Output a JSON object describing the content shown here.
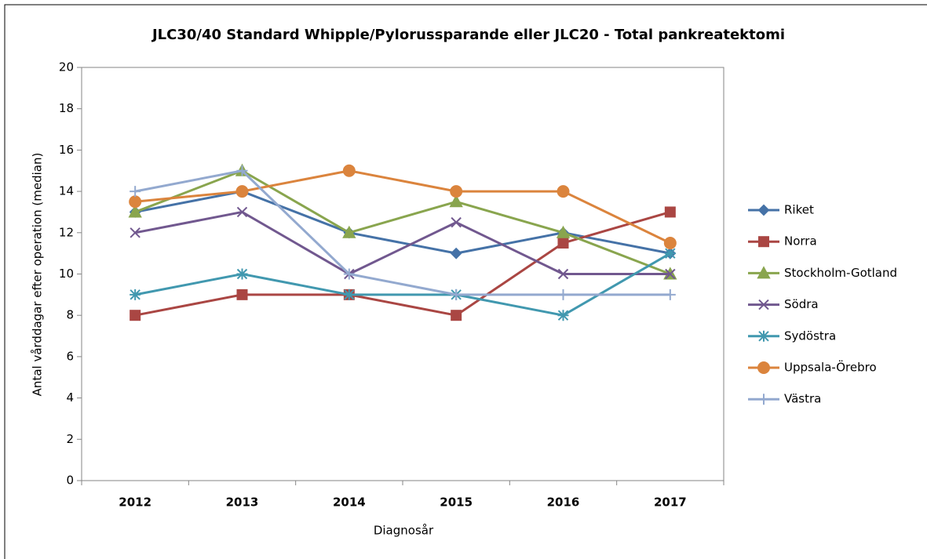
{
  "chart_data": {
    "type": "line",
    "title": "JLC30/40 Standard Whipple/Pylorussparande eller JLC20 - Total pankreatektomi",
    "x_label": "Diagnosår",
    "y_label": "Antal vårddagar efter operation (median)",
    "categories": [
      "2012",
      "2013",
      "2014",
      "2015",
      "2016",
      "2017"
    ],
    "ylim": [
      0,
      20
    ],
    "yticks": [
      0,
      2,
      4,
      6,
      8,
      10,
      12,
      14,
      16,
      18,
      20
    ],
    "legend": "right",
    "series": [
      {
        "name": "Riket",
        "color": "#4572a7",
        "marker": "diamond",
        "values": [
          13,
          14,
          12,
          11,
          12,
          11
        ]
      },
      {
        "name": "Norra",
        "color": "#aa4643",
        "marker": "square",
        "values": [
          8,
          9,
          9,
          8,
          11.5,
          13
        ]
      },
      {
        "name": "Stockholm-Gotland",
        "color": "#89a54e",
        "marker": "triangle",
        "values": [
          13,
          15,
          12,
          13.5,
          12,
          10
        ]
      },
      {
        "name": "Södra",
        "color": "#71588f",
        "marker": "x",
        "values": [
          12,
          13,
          10,
          12.5,
          10,
          10
        ]
      },
      {
        "name": "Sydöstra",
        "color": "#4198af",
        "marker": "star",
        "values": [
          9,
          10,
          9,
          9,
          8,
          11
        ]
      },
      {
        "name": "Uppsala-Örebro",
        "color": "#db843d",
        "marker": "circle",
        "values": [
          13.5,
          14,
          15,
          14,
          14,
          11.5
        ]
      },
      {
        "name": "Västra",
        "color": "#93a9cf",
        "marker": "plus",
        "values": [
          14,
          15,
          10,
          9,
          9,
          9
        ]
      }
    ]
  }
}
